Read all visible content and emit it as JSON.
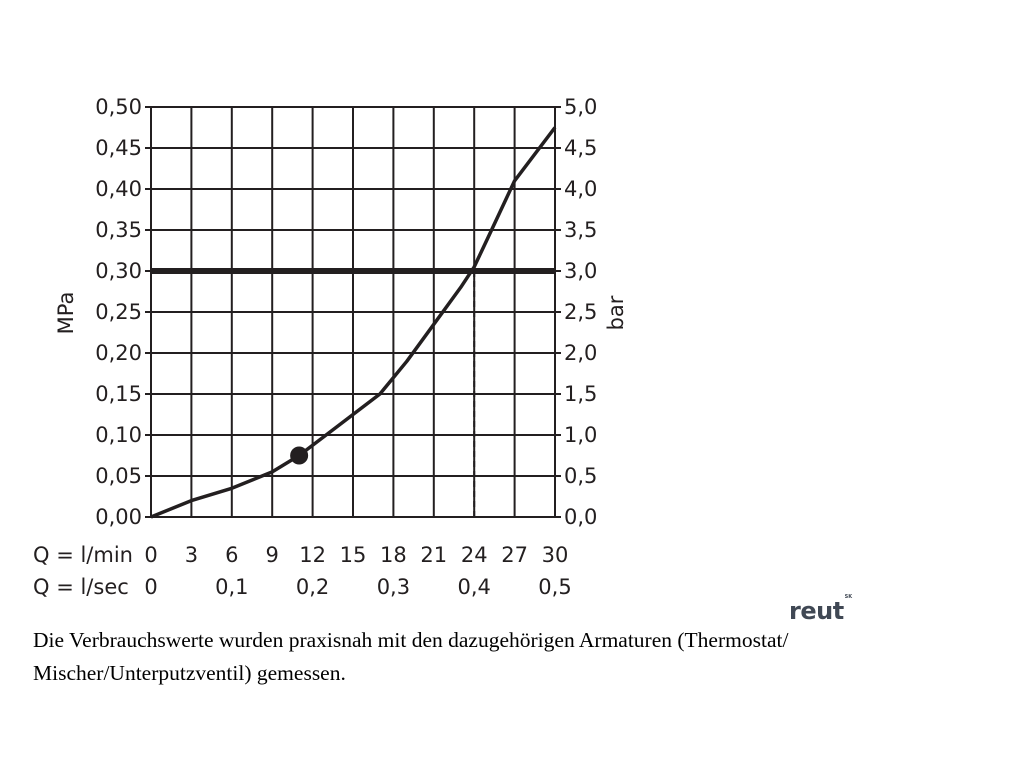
{
  "chart_data": {
    "type": "line",
    "left_axis": {
      "label": "MPa",
      "ticks": [
        "0,00",
        "0,05",
        "0,10",
        "0,15",
        "0,20",
        "0,25",
        "0,30",
        "0,35",
        "0,40",
        "0,45",
        "0,50"
      ],
      "range": [
        0,
        0.5
      ]
    },
    "right_axis": {
      "label": "bar",
      "ticks": [
        "0,0",
        "0,5",
        "1,0",
        "1,5",
        "2,0",
        "2,5",
        "3,0",
        "3,5",
        "4,0",
        "4,5",
        "5,0"
      ],
      "range": [
        0,
        5
      ]
    },
    "x_axis_lmin": {
      "label": "Q = l/min",
      "ticks": [
        "0",
        "3",
        "6",
        "9",
        "12",
        "15",
        "18",
        "21",
        "24",
        "27",
        "30"
      ],
      "range": [
        0,
        30
      ]
    },
    "x_axis_lsec": {
      "label": "Q = l/sec",
      "ticks": [
        "0",
        "0,1",
        "0,2",
        "0,3",
        "0,4",
        "0,5"
      ]
    },
    "series": [
      {
        "x": [
          0,
          3,
          6,
          9,
          11,
          13,
          15,
          17,
          19,
          21,
          23,
          24,
          25,
          27,
          30
        ],
        "y": [
          0,
          0.02,
          0.035,
          0.055,
          0.075,
          0.1,
          0.125,
          0.15,
          0.19,
          0.235,
          0.28,
          0.305,
          0.34,
          0.41,
          0.475
        ]
      }
    ],
    "marker": {
      "x": 11,
      "y": 0.075
    },
    "reference_line": {
      "y": 0.3
    },
    "drop_line": {
      "x": 24,
      "y": 0.3
    },
    "grid": true
  },
  "logo": {
    "text": "reut",
    "sup": "SK",
    "color": "#404854"
  },
  "caption": "Die Verbrauchswerte wurden praxisnah mit den dazugehörigen Armaturen (Thermostat/ Mischer/Unterputzventil) gemessen."
}
